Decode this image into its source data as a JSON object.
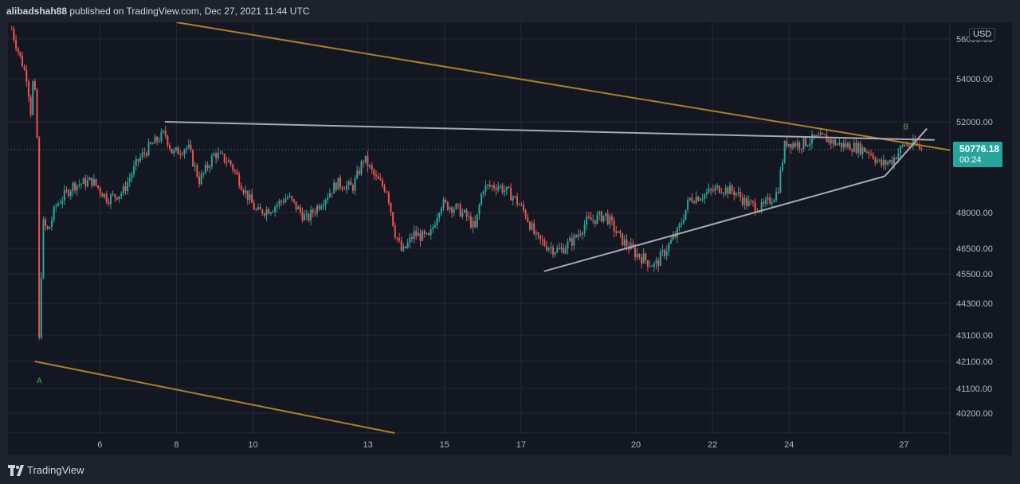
{
  "header": {
    "author": "alibadshah88",
    "text": "published on TradingView.com, Dec 27, 2021 11:44 UTC"
  },
  "footer": {
    "brand": "TradingView",
    "brand_icon": "tradingview-logo-icon"
  },
  "colors": {
    "up": "#26a69a",
    "down": "#ef5350",
    "wedge": "#b07d2a",
    "triangle": "#a9a9b3",
    "grid": "#262a36",
    "background": "#131722",
    "last_price_line": "#26a69a",
    "label": "#4caf50"
  },
  "chart_data": {
    "type": "candlestick",
    "currency": "USD",
    "y_ticks": [
      56000,
      54000,
      52000,
      48000,
      46500,
      45500,
      44300,
      43100,
      42100,
      41100,
      40200
    ],
    "y_tick_labels": [
      "56000.00",
      "54000.00",
      "52000.00",
      "48000.00",
      "46500.00",
      "45500.00",
      "44300.00",
      "43100.00",
      "42100.00",
      "41100.00",
      "40200.00"
    ],
    "x_tick_labels": [
      "6",
      "8",
      "10",
      "13",
      "15",
      "17",
      "20",
      "22",
      "24",
      "27"
    ],
    "x_tick_days": [
      6,
      8,
      10,
      13,
      15,
      17,
      20,
      22,
      24,
      27
    ],
    "x_range_days": [
      3.6,
      28.2
    ],
    "last_price": 50776.18,
    "last_price_label": "50776.18",
    "countdown": "00:24",
    "price_path": [
      [
        3.7,
        56400
      ],
      [
        3.9,
        55200
      ],
      [
        4.1,
        54000
      ],
      [
        4.2,
        52400
      ],
      [
        4.25,
        53800
      ],
      [
        4.35,
        52800
      ],
      [
        4.42,
        42100
      ],
      [
        4.5,
        47600
      ],
      [
        4.65,
        47200
      ],
      [
        4.85,
        48300
      ],
      [
        5.3,
        49200
      ],
      [
        5.8,
        49400
      ],
      [
        6.2,
        48600
      ],
      [
        6.6,
        48900
      ],
      [
        7.0,
        50300
      ],
      [
        7.3,
        50900
      ],
      [
        7.7,
        51500
      ],
      [
        7.9,
        50600
      ],
      [
        8.3,
        50900
      ],
      [
        8.6,
        49400
      ],
      [
        9.0,
        50600
      ],
      [
        9.4,
        50200
      ],
      [
        9.8,
        48900
      ],
      [
        10.1,
        48000
      ],
      [
        10.5,
        48200
      ],
      [
        10.9,
        48700
      ],
      [
        11.4,
        47700
      ],
      [
        11.8,
        48500
      ],
      [
        12.2,
        49300
      ],
      [
        12.6,
        49100
      ],
      [
        12.9,
        50400
      ],
      [
        13.2,
        49500
      ],
      [
        13.5,
        49000
      ],
      [
        13.7,
        47200
      ],
      [
        13.9,
        46300
      ],
      [
        14.2,
        47100
      ],
      [
        14.6,
        46900
      ],
      [
        14.9,
        48400
      ],
      [
        15.3,
        48200
      ],
      [
        15.6,
        47800
      ],
      [
        15.8,
        47300
      ],
      [
        16.0,
        49100
      ],
      [
        16.4,
        49200
      ],
      [
        16.8,
        48700
      ],
      [
        17.1,
        48000
      ],
      [
        17.4,
        46900
      ],
      [
        17.7,
        46600
      ],
      [
        18.0,
        46400
      ],
      [
        18.4,
        46900
      ],
      [
        18.7,
        47600
      ],
      [
        19.2,
        47900
      ],
      [
        19.6,
        46900
      ],
      [
        20.0,
        46300
      ],
      [
        20.5,
        45800
      ],
      [
        20.8,
        46500
      ],
      [
        21.1,
        47200
      ],
      [
        21.4,
        48600
      ],
      [
        21.8,
        48800
      ],
      [
        22.2,
        49100
      ],
      [
        22.6,
        48900
      ],
      [
        22.9,
        48400
      ],
      [
        23.3,
        48200
      ],
      [
        23.7,
        48900
      ],
      [
        23.9,
        51100
      ],
      [
        24.3,
        51000
      ],
      [
        24.6,
        51200
      ],
      [
        24.9,
        51300
      ],
      [
        25.3,
        51000
      ],
      [
        25.7,
        50900
      ],
      [
        26.1,
        50700
      ],
      [
        26.4,
        50100
      ],
      [
        26.7,
        50300
      ],
      [
        27.0,
        51000
      ],
      [
        27.3,
        50950
      ],
      [
        27.5,
        50776
      ]
    ],
    "annotations": [
      {
        "text": "A",
        "day": 4.42,
        "price": 41650
      },
      {
        "text": "B",
        "day": 27.05,
        "price": 51520
      }
    ],
    "trendlines": [
      {
        "name": "wedge-upper",
        "color": "wedge",
        "from": [
          8.0,
          56680
        ],
        "to": [
          28.2,
          50750
        ]
      },
      {
        "name": "wedge-lower",
        "color": "wedge",
        "from": [
          4.3,
          42100
        ],
        "to": [
          13.7,
          40020
        ]
      },
      {
        "name": "triangle-upper",
        "color": "triangle",
        "from": [
          7.7,
          52000
        ],
        "to": [
          27.8,
          51200
        ]
      },
      {
        "name": "triangle-lower",
        "color": "triangle",
        "from": [
          17.6,
          45600
        ],
        "to": [
          26.5,
          49600
        ]
      },
      {
        "name": "rising-channel",
        "color": "triangle",
        "from": [
          26.5,
          49600
        ],
        "to": [
          27.6,
          51700
        ]
      }
    ]
  }
}
